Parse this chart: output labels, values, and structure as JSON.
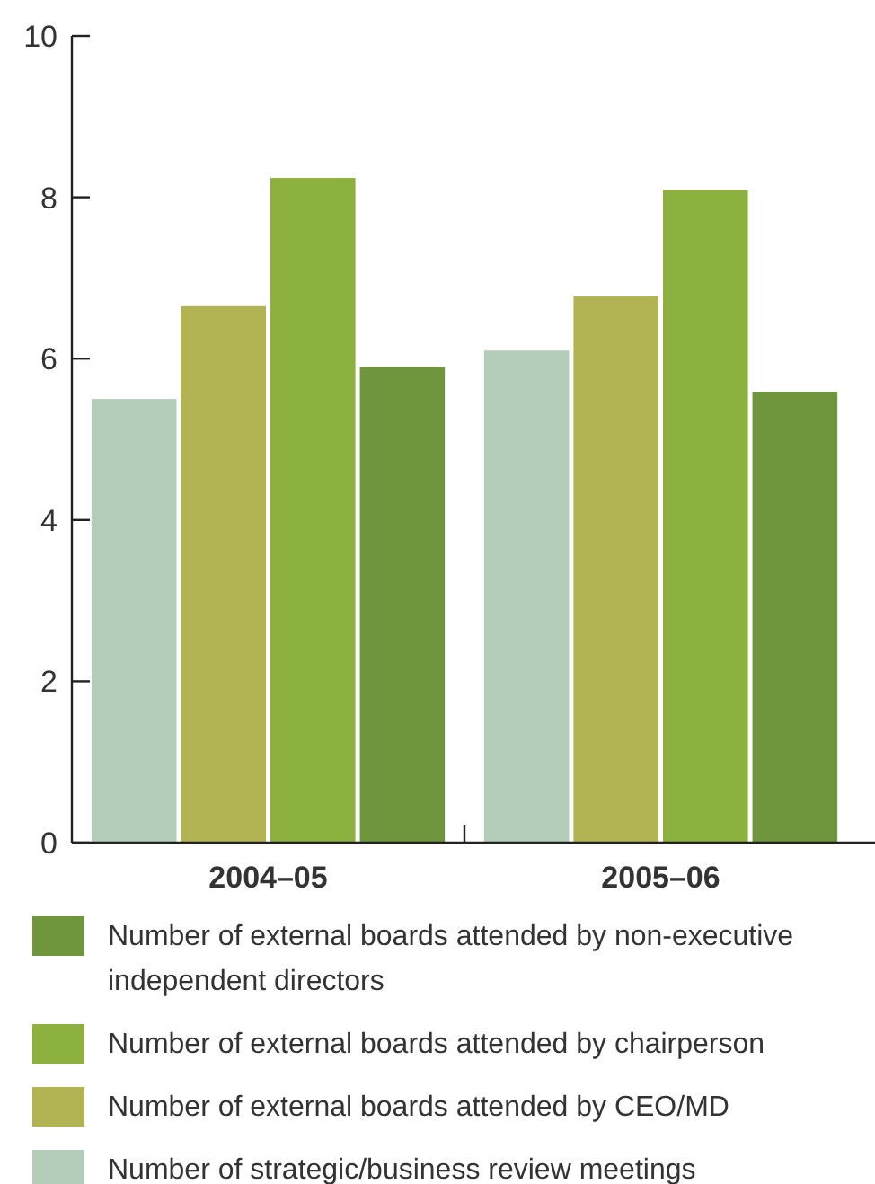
{
  "chart_data": {
    "type": "bar",
    "categories": [
      "2004–05",
      "2005–06"
    ],
    "series": [
      {
        "name": "Number of strategic/business review meetings",
        "color": "#b4cdb8",
        "values": [
          5.5,
          6.1
        ]
      },
      {
        "name": "Number of external boards attended by CEO/MD",
        "color": "#b2b352",
        "values": [
          6.65,
          6.77
        ]
      },
      {
        "name": "Number of external boards attended by chairperson",
        "color": "#8db13e",
        "values": [
          8.24,
          8.09
        ]
      },
      {
        "name": "Number of external boards attended by non-executive independent directors",
        "color": "#6f963c",
        "values": [
          5.9,
          5.59
        ]
      }
    ],
    "ylim": [
      0,
      10
    ],
    "yticks": [
      0,
      2,
      4,
      6,
      8,
      10
    ],
    "grid": false,
    "legend": "bottom"
  }
}
